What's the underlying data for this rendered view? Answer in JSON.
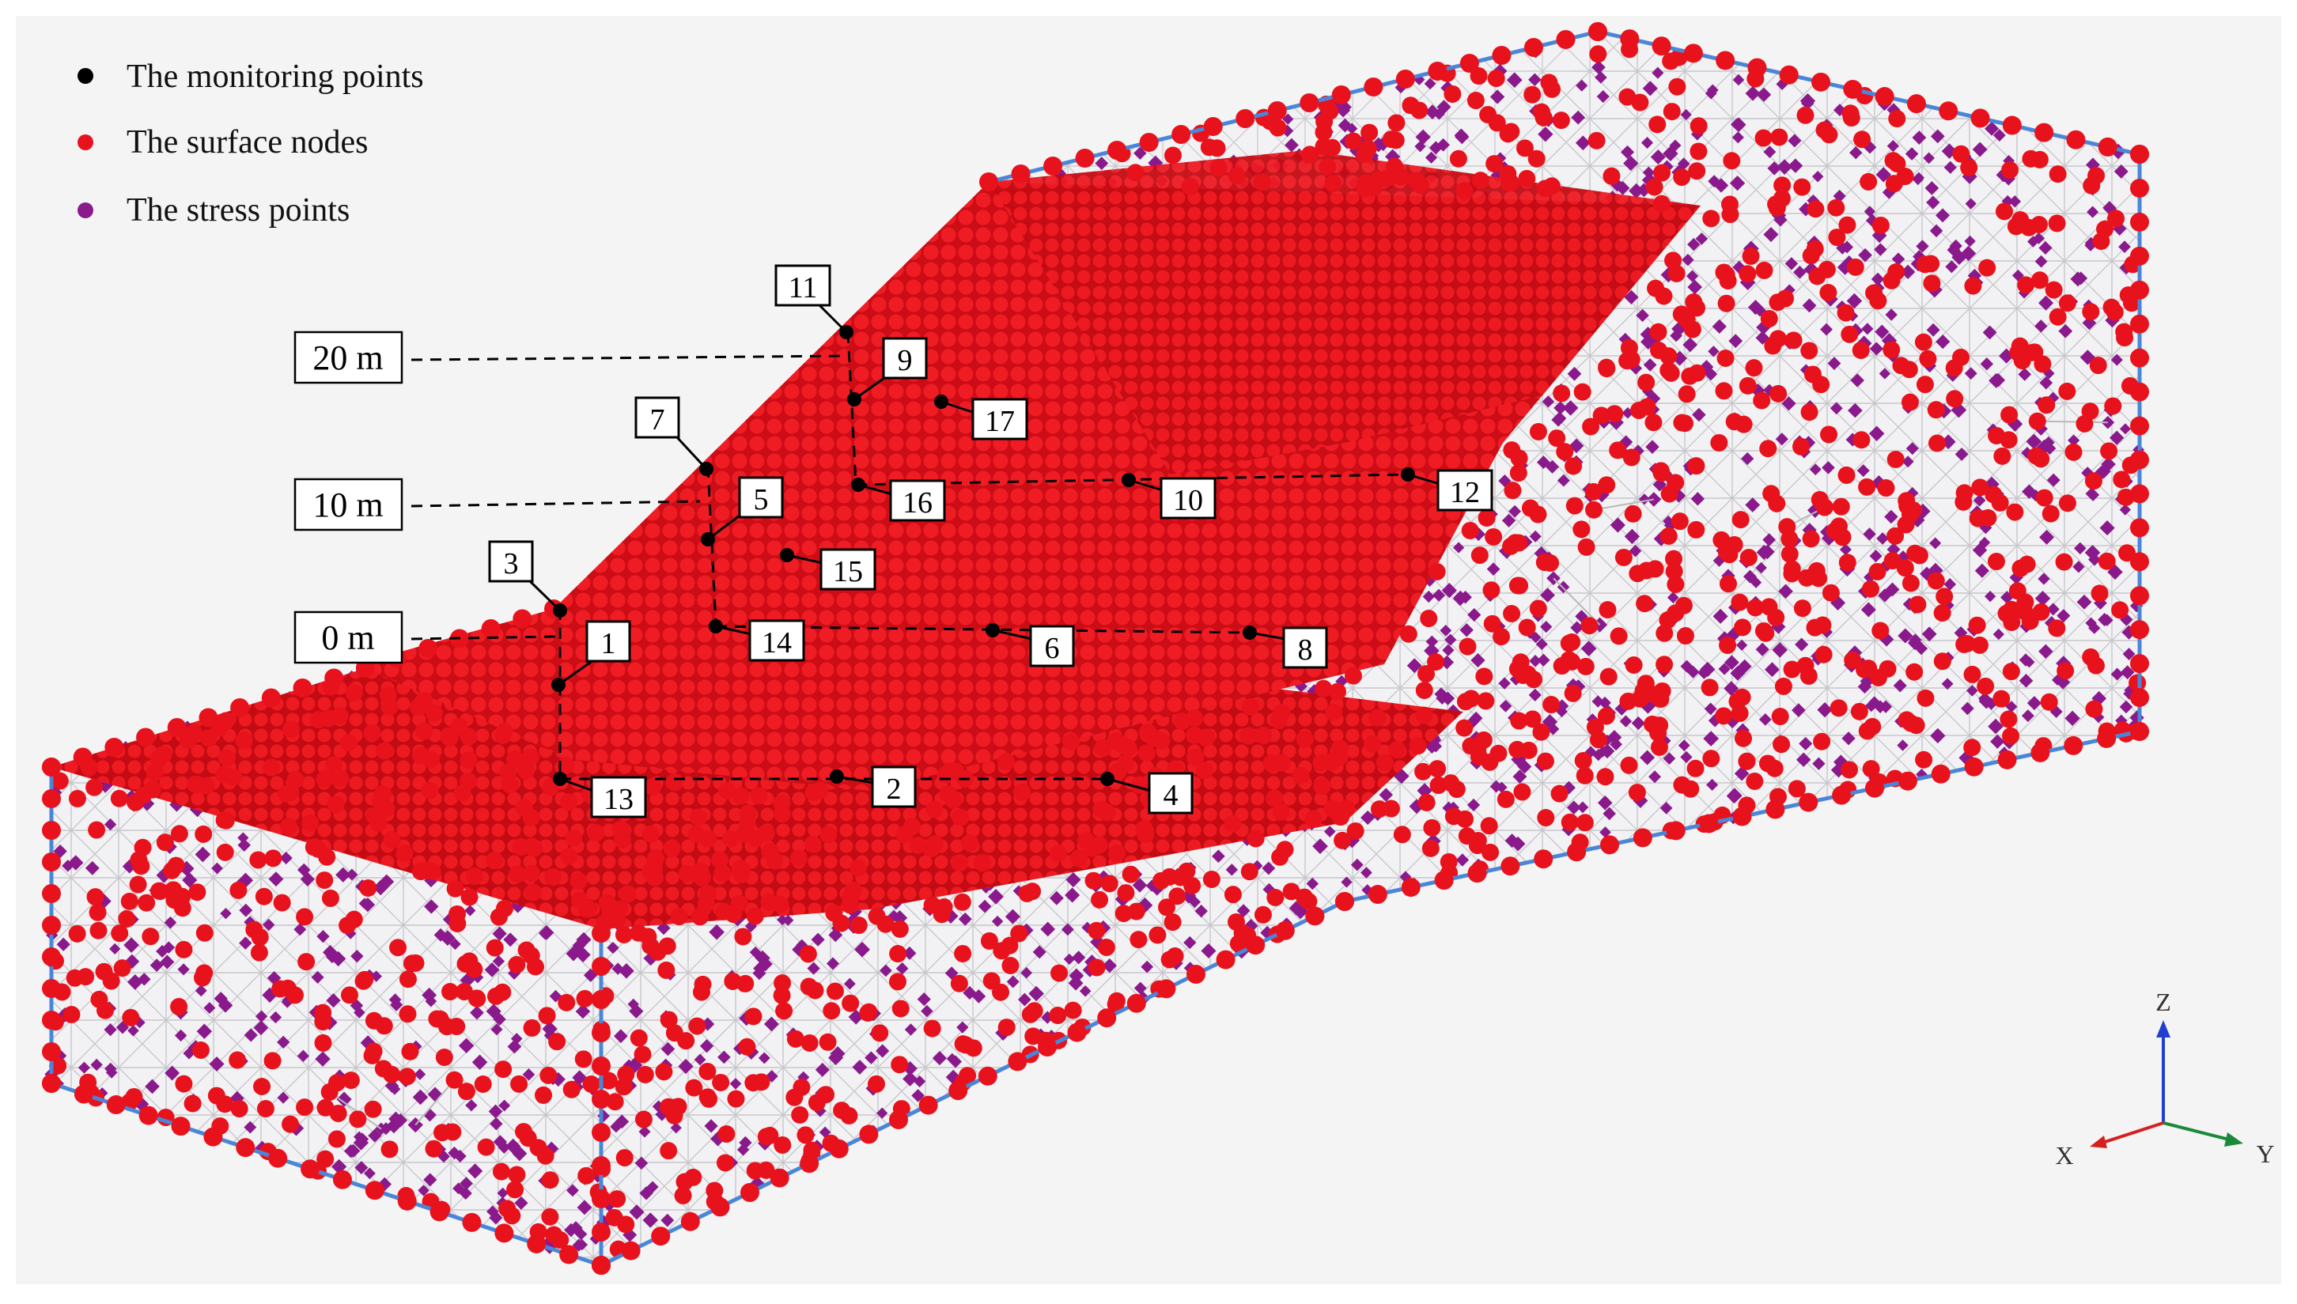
{
  "legend": {
    "monitoring": "The monitoring points",
    "surface": "The surface nodes",
    "stress": "The stress points"
  },
  "elevations": {
    "e20": "20 m",
    "e10": "10 m",
    "e0": "0 m"
  },
  "points": {
    "p1": "1",
    "p2": "2",
    "p3": "3",
    "p4": "4",
    "p5": "5",
    "p6": "6",
    "p7": "7",
    "p8": "8",
    "p9": "9",
    "p10": "10",
    "p11": "11",
    "p12": "12",
    "p13": "13",
    "p14": "14",
    "p15": "15",
    "p16": "16",
    "p17": "17"
  },
  "axes": {
    "z": "Z",
    "x": "X",
    "y": "Y"
  },
  "colors": {
    "monitoring": "#000000",
    "surface": "#e8121c",
    "surface_dark": "#b80a12",
    "stress": "#8a1a8c",
    "box_edge": "#4a86d8",
    "mesh": "#b8b8b8",
    "axis_z": "#1f3fd0",
    "axis_x": "#d62020",
    "axis_y": "#1a8a3a"
  }
}
